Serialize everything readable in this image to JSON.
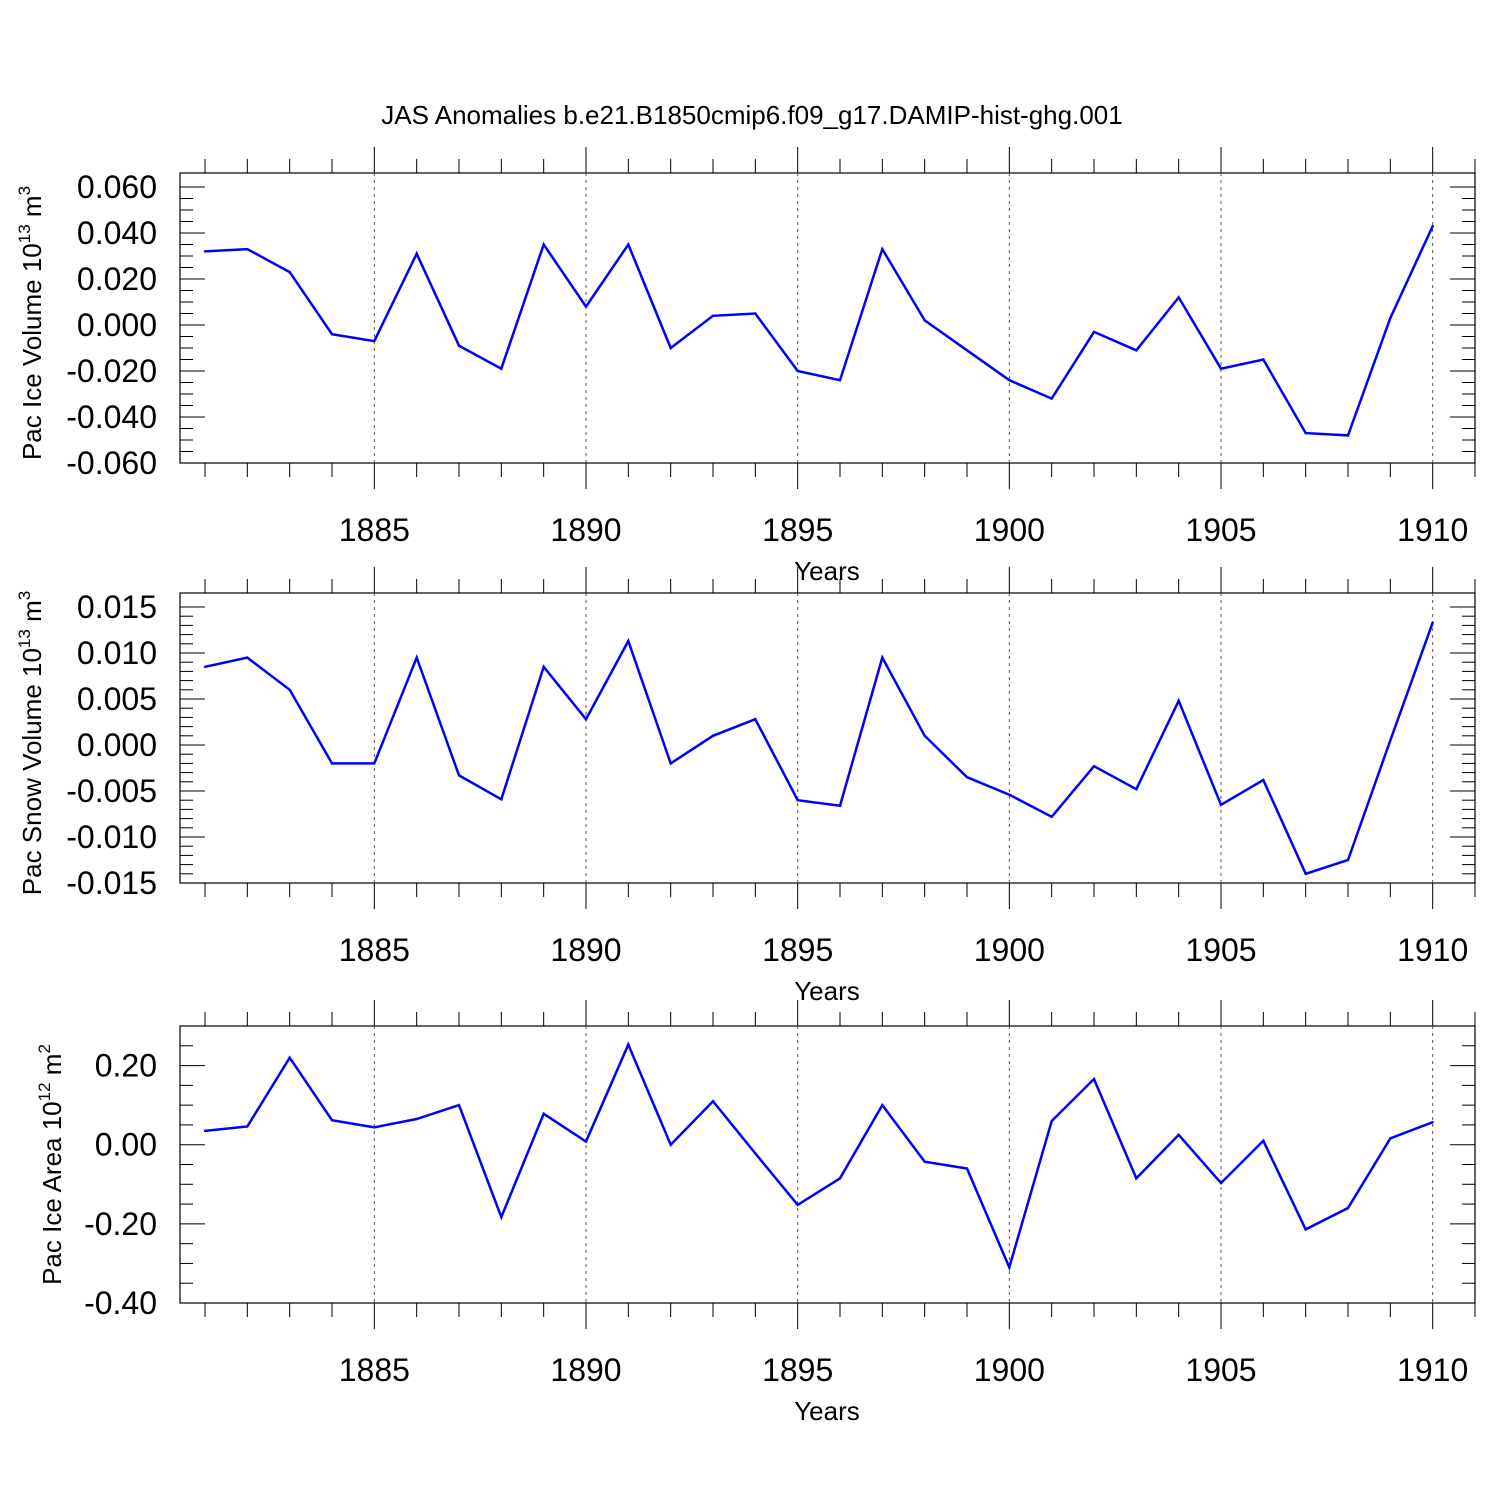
{
  "title": "JAS Anomalies b.e21.B1850cmip6.f09_g17.DAMIP-hist-ghg.001",
  "line_color": "#0000ff",
  "chart_data": [
    {
      "type": "line",
      "title": "JAS Anomalies b.e21.B1850cmip6.f09_g17.DAMIP-hist-ghg.001",
      "ylabel_base": "Pac Ice Volume 10",
      "ylabel_exp": "13",
      "ylabel_unit": " m",
      "ylabel_unit_exp": "3",
      "xlabel": "Years",
      "xlim": [
        1881,
        1911
      ],
      "ylim": [
        -0.06,
        0.06
      ],
      "yticks": [
        -0.06,
        -0.04,
        -0.02,
        0.0,
        0.02,
        0.04,
        0.06
      ],
      "yticklabels": [
        "-0.060",
        "-0.040",
        "-0.020",
        "0.000",
        "0.020",
        "0.040",
        "0.060"
      ],
      "yminor_step": 0.005,
      "xticks": [
        1885,
        1890,
        1895,
        1900,
        1905,
        1910
      ],
      "xticklabels": [
        "1885",
        "1890",
        "1895",
        "1900",
        "1905",
        "1910"
      ],
      "x": [
        1881,
        1882,
        1883,
        1884,
        1885,
        1886,
        1887,
        1888,
        1889,
        1890,
        1891,
        1892,
        1893,
        1894,
        1895,
        1896,
        1897,
        1898,
        1899,
        1900,
        1901,
        1902,
        1903,
        1904,
        1905,
        1906,
        1907,
        1908,
        1909,
        1910
      ],
      "values": [
        0.032,
        0.033,
        0.023,
        -0.004,
        -0.007,
        0.031,
        -0.009,
        -0.019,
        0.035,
        0.008,
        0.035,
        -0.01,
        0.004,
        0.005,
        -0.02,
        -0.024,
        0.033,
        0.002,
        -0.011,
        -0.024,
        -0.032,
        -0.003,
        -0.011,
        0.012,
        -0.019,
        -0.015,
        -0.047,
        -0.048,
        0.003,
        0.043
      ]
    },
    {
      "type": "line",
      "ylabel_base": "Pac Snow Volume 10",
      "ylabel_exp": "13",
      "ylabel_unit": " m",
      "ylabel_unit_exp": "3",
      "xlabel": "Years",
      "xlim": [
        1881,
        1911
      ],
      "ylim": [
        -0.015,
        0.015
      ],
      "yticks": [
        -0.015,
        -0.01,
        -0.005,
        0.0,
        0.005,
        0.01,
        0.015
      ],
      "yticklabels": [
        "-0.015",
        "-0.010",
        "-0.005",
        "0.000",
        "0.005",
        "0.010",
        "0.015"
      ],
      "yminor_step": 0.001,
      "xticks": [
        1885,
        1890,
        1895,
        1900,
        1905,
        1910
      ],
      "xticklabels": [
        "1885",
        "1890",
        "1895",
        "1900",
        "1905",
        "1910"
      ],
      "x": [
        1881,
        1882,
        1883,
        1884,
        1885,
        1886,
        1887,
        1888,
        1889,
        1890,
        1891,
        1892,
        1893,
        1894,
        1895,
        1896,
        1897,
        1898,
        1899,
        1900,
        1901,
        1902,
        1903,
        1904,
        1905,
        1906,
        1907,
        1908,
        1909,
        1910
      ],
      "values": [
        0.0085,
        0.0095,
        0.006,
        -0.002,
        -0.002,
        0.0095,
        -0.0033,
        -0.0059,
        0.0085,
        0.0028,
        0.0113,
        -0.002,
        0.001,
        0.0028,
        -0.006,
        -0.0066,
        0.0095,
        0.001,
        -0.0035,
        -0.0054,
        -0.0078,
        -0.0023,
        -0.0048,
        0.0048,
        -0.0065,
        -0.0038,
        -0.014,
        -0.0125,
        0.0005,
        0.0133
      ]
    },
    {
      "type": "line",
      "ylabel_base": "Pac Ice Area 10",
      "ylabel_exp": "12",
      "ylabel_unit": " m",
      "ylabel_unit_exp": "2",
      "xlabel": "Years",
      "xlim": [
        1881,
        1911
      ],
      "ylim": [
        -0.4,
        0.3
      ],
      "yticks": [
        -0.4,
        -0.2,
        0.0,
        0.2
      ],
      "yticklabels": [
        "-0.40",
        "-0.20",
        "0.00",
        "0.20"
      ],
      "yminor_step": 0.05,
      "xticks": [
        1885,
        1890,
        1895,
        1900,
        1905,
        1910
      ],
      "xticklabels": [
        "1885",
        "1890",
        "1895",
        "1900",
        "1905",
        "1910"
      ],
      "x": [
        1881,
        1882,
        1883,
        1884,
        1885,
        1886,
        1887,
        1888,
        1889,
        1890,
        1891,
        1892,
        1893,
        1894,
        1895,
        1896,
        1897,
        1898,
        1899,
        1900,
        1901,
        1902,
        1903,
        1904,
        1905,
        1906,
        1907,
        1908,
        1909,
        1910
      ],
      "values": [
        0.035,
        0.046,
        0.22,
        0.062,
        0.044,
        0.065,
        0.1,
        -0.183,
        0.078,
        0.008,
        0.253,
        0.0,
        0.11,
        -0.022,
        -0.152,
        -0.085,
        0.1,
        -0.043,
        -0.06,
        -0.31,
        0.06,
        0.166,
        -0.085,
        0.025,
        -0.097,
        0.01,
        -0.214,
        -0.16,
        0.016,
        0.057
      ]
    }
  ]
}
